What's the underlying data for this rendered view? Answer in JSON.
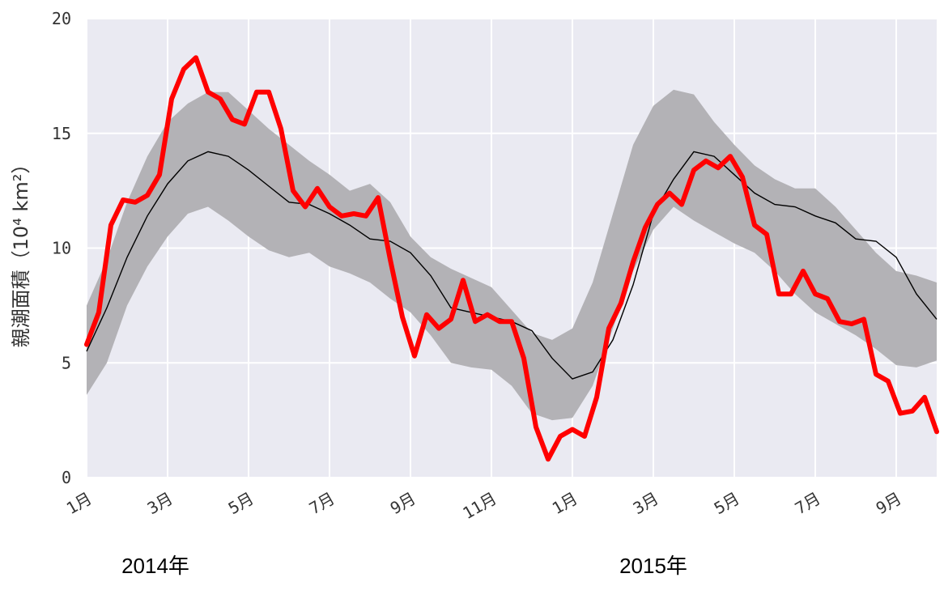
{
  "chart_data": {
    "type": "line",
    "title": "",
    "ylabel": "親潮面積（10⁴ km²）",
    "ylim": [
      0,
      20
    ],
    "xlim": [
      0,
      21
    ],
    "grid": true,
    "y_ticks": [
      0,
      5,
      10,
      15,
      20
    ],
    "x_ticks": [
      {
        "x": 0,
        "label": "1月"
      },
      {
        "x": 2,
        "label": "3月"
      },
      {
        "x": 4,
        "label": "5月"
      },
      {
        "x": 6,
        "label": "7月"
      },
      {
        "x": 8,
        "label": "9月"
      },
      {
        "x": 10,
        "label": "11月"
      },
      {
        "x": 12,
        "label": "1月"
      },
      {
        "x": 14,
        "label": "3月"
      },
      {
        "x": 16,
        "label": "5月"
      },
      {
        "x": 18,
        "label": "7月"
      },
      {
        "x": 20,
        "label": "9月"
      }
    ],
    "year_labels": [
      {
        "x": 1.7,
        "label": "2014年"
      },
      {
        "x": 14.0,
        "label": "2015年"
      }
    ],
    "colors": {
      "background": "#eaeaf2",
      "band": "#b3b2b6",
      "mean": "#000000",
      "observed": "#ff0000"
    },
    "series": [
      {
        "role": "band",
        "x": [
          0,
          0.5,
          1,
          1.5,
          2,
          2.5,
          3,
          3.5,
          4,
          4.5,
          5,
          5.5,
          6,
          6.5,
          7,
          7.5,
          8,
          8.5,
          9,
          9.5,
          10,
          10.5,
          11,
          11.5,
          12,
          12.5,
          13,
          13.5,
          14,
          14.5,
          15,
          15.5,
          16,
          16.5,
          17,
          17.5,
          18,
          18.5,
          19,
          19.5,
          20,
          20.5,
          21
        ],
        "lower": [
          3.6,
          5.0,
          7.5,
          9.2,
          10.5,
          11.5,
          11.8,
          11.2,
          10.5,
          9.9,
          9.6,
          9.8,
          9.2,
          8.9,
          8.5,
          7.8,
          7.2,
          6.2,
          5.0,
          4.8,
          4.7,
          4.0,
          2.8,
          2.5,
          2.6,
          4.0,
          6.5,
          9.0,
          10.8,
          11.8,
          11.2,
          10.7,
          10.2,
          9.8,
          9.0,
          8.0,
          7.2,
          6.7,
          6.2,
          5.6,
          4.9,
          4.8,
          5.1
        ],
        "upper": [
          7.5,
          9.5,
          12.0,
          14.0,
          15.5,
          16.3,
          16.8,
          16.8,
          16.0,
          15.2,
          14.5,
          13.8,
          13.2,
          12.5,
          12.8,
          12.0,
          10.5,
          9.6,
          9.1,
          8.7,
          8.3,
          7.3,
          6.3,
          6.0,
          6.5,
          8.5,
          11.5,
          14.5,
          16.2,
          16.9,
          16.7,
          15.5,
          14.5,
          13.6,
          13.0,
          12.6,
          12.6,
          11.8,
          10.8,
          9.8,
          9.0,
          8.8,
          8.5
        ]
      },
      {
        "role": "mean",
        "x": [
          0,
          0.5,
          1,
          1.5,
          2,
          2.5,
          3,
          3.5,
          4,
          4.5,
          5,
          5.5,
          6,
          6.5,
          7,
          7.5,
          8,
          8.5,
          9,
          9.5,
          10,
          10.5,
          11,
          11.5,
          12,
          12.5,
          13,
          13.5,
          14,
          14.5,
          15,
          15.5,
          16,
          16.5,
          17,
          17.5,
          18,
          18.5,
          19,
          19.5,
          20,
          20.5,
          21
        ],
        "values": [
          5.5,
          7.4,
          9.6,
          11.4,
          12.8,
          13.8,
          14.2,
          14.0,
          13.4,
          12.7,
          12.0,
          11.9,
          11.5,
          11.0,
          10.4,
          10.3,
          9.8,
          8.8,
          7.4,
          7.2,
          7.0,
          6.8,
          6.4,
          5.2,
          4.3,
          4.6,
          6.0,
          8.4,
          11.5,
          13.0,
          14.2,
          14.0,
          13.2,
          12.4,
          11.9,
          11.8,
          11.4,
          11.1,
          10.4,
          10.3,
          9.6,
          8.0,
          6.9
        ]
      },
      {
        "role": "observed",
        "x": [
          0,
          0.3,
          0.6,
          0.9,
          1.2,
          1.5,
          1.8,
          2.1,
          2.4,
          2.7,
          3.0,
          3.3,
          3.6,
          3.9,
          4.2,
          4.5,
          4.8,
          5.1,
          5.4,
          5.7,
          6.0,
          6.3,
          6.6,
          6.9,
          7.2,
          7.5,
          7.8,
          8.1,
          8.4,
          8.7,
          9.0,
          9.3,
          9.6,
          9.9,
          10.2,
          10.5,
          10.8,
          11.1,
          11.4,
          11.7,
          12.0,
          12.3,
          12.6,
          12.9,
          13.2,
          13.5,
          13.8,
          14.1,
          14.4,
          14.7,
          15.0,
          15.3,
          15.6,
          15.9,
          16.2,
          16.5,
          16.8,
          17.1,
          17.4,
          17.7,
          18.0,
          18.3,
          18.6,
          18.9,
          19.2,
          19.5,
          19.8,
          20.1,
          20.4,
          20.7,
          21.0
        ],
        "values": [
          5.8,
          7.2,
          11.0,
          12.1,
          12.0,
          12.3,
          13.2,
          16.5,
          17.8,
          18.3,
          16.8,
          16.5,
          15.6,
          15.4,
          16.8,
          16.8,
          15.2,
          12.5,
          11.8,
          12.6,
          11.8,
          11.4,
          11.5,
          11.4,
          12.2,
          9.5,
          7.0,
          5.3,
          7.1,
          6.5,
          6.9,
          8.6,
          6.8,
          7.1,
          6.8,
          6.8,
          5.2,
          2.2,
          0.8,
          1.8,
          2.1,
          1.8,
          3.5,
          6.5,
          7.6,
          9.4,
          10.9,
          11.9,
          12.4,
          11.9,
          13.4,
          13.8,
          13.5,
          14.0,
          13.1,
          11.0,
          10.6,
          8.0,
          8.0,
          9.0,
          8.0,
          7.8,
          6.8,
          6.7,
          6.9,
          4.5,
          4.2,
          2.8,
          2.9,
          3.5,
          2.0
        ]
      }
    ]
  }
}
